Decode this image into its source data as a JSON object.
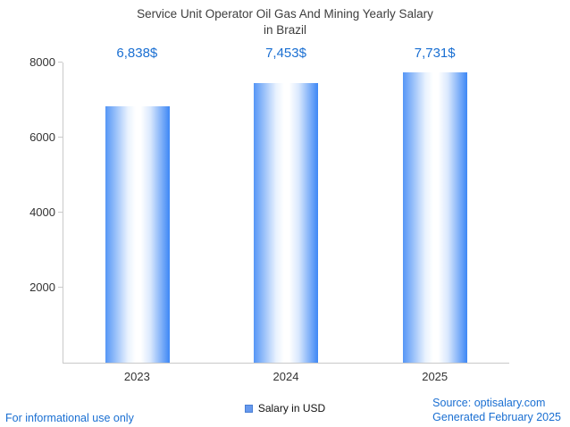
{
  "chart_data": {
    "type": "bar",
    "title": "Service Unit Operator Oil Gas And Mining Yearly Salary in Brazil",
    "title_lines": [
      "Service Unit Operator Oil Gas And Mining Yearly Salary",
      "in Brazil"
    ],
    "categories": [
      "2023",
      "2024",
      "2025"
    ],
    "values": [
      6838,
      7453,
      7731
    ],
    "value_labels": [
      "6,838$",
      "7,453$",
      "7,731$"
    ],
    "series_name": "Salary in USD",
    "xlabel": "",
    "ylabel": "",
    "ylim": [
      0,
      8000
    ],
    "yticks": [
      2000,
      4000,
      6000,
      8000
    ],
    "grid": false,
    "legend_position": "bottom"
  },
  "legend": {
    "label": "Salary in USD"
  },
  "footer": {
    "disclaimer": "For informational use only",
    "source": "Source: optisalary.com",
    "generated": "Generated February 2025"
  },
  "colors": {
    "accent": "#1a6fd2",
    "title": "#3d3d3d",
    "axis": "#c9c9c9",
    "tick-text": "#333333",
    "bar-edge-left": "#5596f6",
    "bar-edge-right": "#3d87f5",
    "bar-center": "#ffffff",
    "legend-marker": "#6699ee"
  }
}
